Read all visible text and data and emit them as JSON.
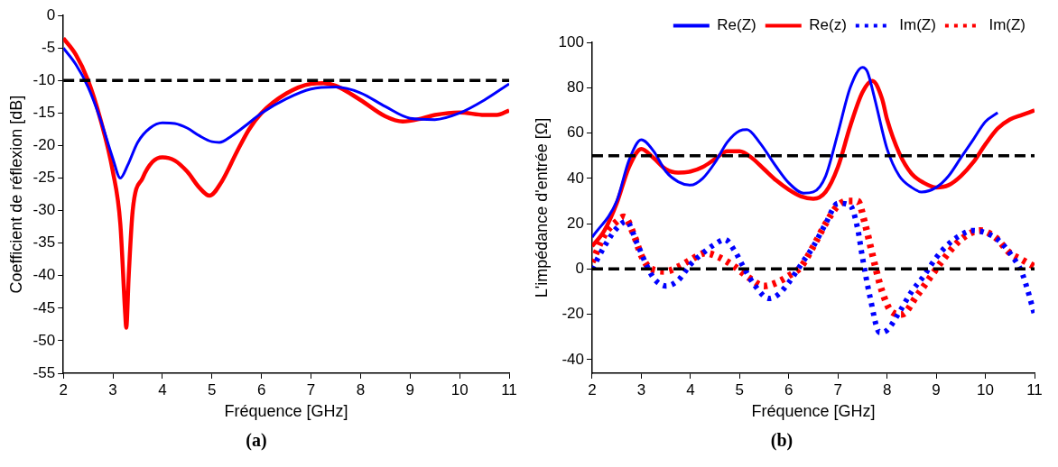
{
  "chart_data": [
    {
      "type": "line",
      "title": "(a)",
      "xlabel": "Fréquence [GHz]",
      "ylabel": "Coefficient de réflexion [dB]",
      "xlim": [
        2,
        11
      ],
      "xticks": [
        2,
        3,
        4,
        5,
        6,
        7,
        8,
        9,
        10,
        11
      ],
      "ylim": [
        -55,
        0
      ],
      "yticks": [
        -55,
        -50,
        -45,
        -40,
        -35,
        -30,
        -25,
        -20,
        -15,
        -10,
        -5,
        0
      ],
      "grid": false,
      "legend": false,
      "marker": "none",
      "line_style": "solid",
      "ref_lines": [
        {
          "axis": "y",
          "value": -10,
          "color": "#000000",
          "line_style": "dashed"
        }
      ],
      "series": [
        {
          "color": "#0000ff",
          "x": [
            2,
            2.25,
            2.5,
            2.75,
            3,
            3.15,
            3.3,
            3.5,
            3.75,
            4,
            4.25,
            4.5,
            4.75,
            5,
            5.15,
            5.4,
            5.75,
            6,
            6.5,
            7,
            7.5,
            8,
            8.5,
            9,
            9.5,
            10,
            10.5,
            11
          ],
          "values": [
            -5,
            -7.5,
            -11,
            -16,
            -22,
            -25,
            -23,
            -19.5,
            -17.3,
            -16.5,
            -16.6,
            -17.3,
            -18.5,
            -19.4,
            -19.5,
            -18.5,
            -16.5,
            -15,
            -12.8,
            -11.3,
            -11,
            -11.9,
            -14,
            -15.8,
            -16,
            -15,
            -13,
            -10.5
          ]
        },
        {
          "color": "#ff0000",
          "x": [
            2,
            2.25,
            2.5,
            2.75,
            3,
            3.15,
            3.25,
            3.27,
            3.32,
            3.4,
            3.6,
            3.8,
            4,
            4.25,
            4.5,
            4.75,
            4.95,
            5.2,
            5.5,
            5.75,
            6,
            6.5,
            7,
            7.25,
            7.5,
            8,
            8.5,
            8.85,
            9.25,
            9.5,
            10,
            10.5,
            10.75,
            11
          ],
          "values": [
            -3.5,
            -6,
            -10,
            -16,
            -24,
            -32,
            -46,
            -48,
            -40,
            -30,
            -25,
            -22.5,
            -21.8,
            -22.3,
            -24,
            -26.5,
            -27.7,
            -25.5,
            -21,
            -17.5,
            -15,
            -12,
            -10.5,
            -10.4,
            -10.8,
            -13,
            -15.5,
            -16.3,
            -15.8,
            -15.3,
            -14.9,
            -15.3,
            -15.3,
            -14.6
          ]
        }
      ]
    },
    {
      "type": "line",
      "title": "(b)",
      "xlabel": "Fréquence [GHz]",
      "ylabel": "L'impédance d'entrée [Ω]",
      "xlim": [
        2,
        11
      ],
      "xticks": [
        2,
        3,
        4,
        5,
        6,
        7,
        8,
        9,
        10,
        11
      ],
      "ylim": [
        -46,
        100
      ],
      "yticks": [
        -40,
        -20,
        0,
        20,
        40,
        60,
        80,
        100
      ],
      "grid": false,
      "legend": "top right",
      "marker": "none",
      "ref_lines": [
        {
          "axis": "y",
          "value": 50,
          "color": "#000000",
          "line_style": "dashed"
        },
        {
          "axis": "y",
          "value": 0,
          "color": "#000000",
          "line_style": "dashed"
        }
      ],
      "series": [
        {
          "name": "Re(Z)",
          "color": "#0000ff",
          "line_style": "solid",
          "x": [
            2,
            2.5,
            2.75,
            3,
            3.25,
            3.5,
            3.75,
            4,
            4.25,
            4.5,
            4.75,
            5,
            5.15,
            5.4,
            5.75,
            6,
            6.3,
            6.5,
            6.75,
            7,
            7.25,
            7.5,
            7.6,
            7.75,
            8,
            8.25,
            8.5,
            8.7,
            9,
            9.25,
            9.5,
            9.75,
            10,
            10.25
          ],
          "values": [
            14,
            30,
            48,
            57,
            52,
            43,
            38.5,
            37,
            40,
            47,
            56,
            61,
            61.5,
            56,
            45,
            38,
            33.5,
            34,
            41,
            60,
            80,
            89,
            87,
            75,
            53,
            41,
            36,
            34,
            36,
            41,
            49,
            57,
            65,
            69
          ]
        },
        {
          "name": "Re(z)",
          "color": "#ff0000",
          "line_style": "solid",
          "x": [
            2,
            2.25,
            2.5,
            2.75,
            3,
            3.25,
            3.5,
            3.75,
            4,
            4.25,
            4.5,
            4.75,
            5,
            5.25,
            5.5,
            5.75,
            6,
            6.25,
            6.5,
            6.75,
            7,
            7.25,
            7.5,
            7.7,
            7.9,
            8,
            8.25,
            8.5,
            8.75,
            9,
            9.25,
            9.5,
            9.75,
            10,
            10.25,
            10.5,
            10.75,
            11
          ],
          "values": [
            10,
            17,
            29,
            45,
            53,
            49,
            44,
            42.5,
            43,
            45,
            48.5,
            52,
            52,
            49,
            44,
            39,
            35,
            32,
            31,
            34,
            45,
            63,
            78,
            83,
            75,
            66,
            51,
            42,
            38,
            36,
            37,
            41,
            47,
            55,
            62,
            66,
            68,
            70
          ]
        },
        {
          "name": "Im(Z)",
          "color": "#0000ff",
          "line_style": "dotted",
          "x": [
            2,
            2.25,
            2.5,
            2.7,
            2.9,
            3.1,
            3.25,
            3.5,
            3.75,
            4,
            4.25,
            4.5,
            4.7,
            4.9,
            5.1,
            5.3,
            5.6,
            5.8,
            6,
            6.25,
            6.5,
            6.75,
            7,
            7.25,
            7.4,
            7.5,
            7.65,
            7.85,
            8,
            8.25,
            8.5,
            8.75,
            9,
            9.25,
            9.5,
            9.75,
            10,
            10.25,
            10.5,
            10.75,
            11
          ],
          "values": [
            0,
            10,
            18,
            21,
            12,
            2,
            -4,
            -7.5,
            -5,
            2,
            7,
            11,
            13,
            8,
            0,
            -7,
            -13,
            -11,
            -6,
            2,
            10,
            20,
            29,
            28,
            18,
            5,
            -12,
            -28,
            -27,
            -19,
            -10,
            -3,
            5,
            11,
            15,
            17,
            16,
            13,
            7,
            -2,
            -20
          ]
        },
        {
          "name": "Im(Z)",
          "color": "#ff0000",
          "line_style": "dotted",
          "x": [
            2,
            2.25,
            2.5,
            2.65,
            2.85,
            3,
            3.2,
            3.5,
            3.75,
            4,
            4.3,
            4.6,
            4.9,
            5.2,
            5.5,
            5.75,
            6,
            6.25,
            6.5,
            6.75,
            7,
            7.2,
            7.4,
            7.55,
            7.75,
            7.9,
            8.1,
            8.3,
            8.6,
            8.9,
            9.1,
            9.5,
            9.9,
            10.2,
            10.5,
            10.75,
            11
          ],
          "values": [
            3,
            15,
            21,
            23,
            15,
            6,
            0,
            -1,
            1,
            4,
            7,
            5,
            1,
            -4,
            -7.5,
            -6,
            -3,
            1,
            10,
            20,
            28,
            30,
            30,
            20,
            2,
            -10,
            -19,
            -20,
            -12,
            -3,
            3,
            13,
            17,
            14,
            7,
            4,
            1
          ]
        }
      ]
    }
  ]
}
